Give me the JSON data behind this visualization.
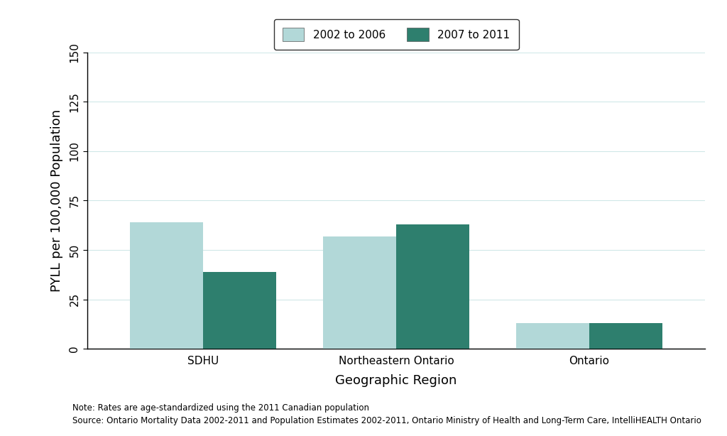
{
  "categories": [
    "SDHU",
    "Northeastern Ontario",
    "Ontario"
  ],
  "series": [
    {
      "label": "2002 to 2006",
      "values": [
        64,
        57,
        13
      ],
      "color": "#b2d8d8"
    },
    {
      "label": "2007 to 2011",
      "values": [
        39,
        63,
        13
      ],
      "color": "#2e7f6e"
    }
  ],
  "ylabel": "PYLL per 100,000 Population",
  "xlabel": "Geographic Region",
  "ylim": [
    0,
    150
  ],
  "yticks": [
    0,
    25,
    50,
    75,
    100,
    125,
    150
  ],
  "bar_width": 0.38,
  "background_color": "#ffffff",
  "grid_color": "#d0e8e8",
  "note_line1": "Note: Rates are age-standardized using the 2011 Canadian population",
  "note_line2": "Source: Ontario Mortality Data 2002-2011 and Population Estimates 2002-2011, Ontario Ministry of Health and Long-Term Care, IntelliHEALTH Ontario",
  "legend_box_color": "#ffffff",
  "axis_label_fontsize": 13,
  "tick_fontsize": 11,
  "note_fontsize": 8.5,
  "legend_fontsize": 11
}
